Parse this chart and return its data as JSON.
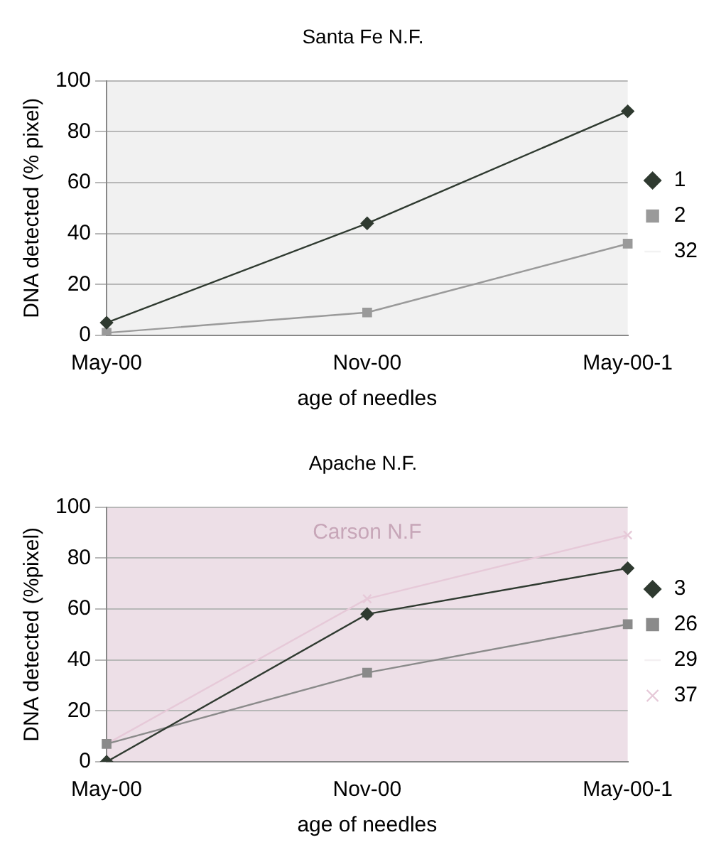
{
  "chart_data": [
    {
      "type": "line",
      "title": "Santa Fe N.F.",
      "xlabel": "age of needles",
      "ylabel": "DNA detected (% pixel)",
      "categories": [
        "May-00",
        "Nov-00",
        "May-00-1"
      ],
      "series": [
        {
          "name": "1",
          "color": "#2f3a30",
          "values": [
            5,
            44,
            88
          ],
          "marker": "diamond"
        },
        {
          "name": "2",
          "color": "#9a9a9a",
          "values": [
            1,
            9,
            36
          ],
          "marker": "square"
        },
        {
          "name": "32",
          "color": "#f2f2f2",
          "values": [
            null,
            null,
            null
          ],
          "marker": "none"
        }
      ],
      "ylim": [
        0,
        100
      ],
      "yticks": [
        0,
        20,
        40,
        60,
        80,
        100
      ],
      "grid": "y",
      "legend": "right"
    },
    {
      "type": "line",
      "title": "Apache N.F.",
      "xlabel": "age of needles",
      "ylabel": "DNA detected (%pixel)",
      "categories": [
        "May-00",
        "Nov-00",
        "May-00-1"
      ],
      "series": [
        {
          "name": "3",
          "color": "#2f3a30",
          "values": [
            0,
            58,
            76
          ],
          "marker": "diamond"
        },
        {
          "name": "26",
          "color": "#8a8a8a",
          "values": [
            7,
            35,
            54
          ],
          "marker": "square"
        },
        {
          "name": "29",
          "color": "#f4f0f2",
          "values": [
            null,
            null,
            null
          ],
          "marker": "none"
        },
        {
          "name": "37",
          "color": "#e6c9d8",
          "values": [
            7,
            64,
            89
          ],
          "marker": "cross"
        }
      ],
      "annotations": [
        "Carson N.F"
      ],
      "ylim": [
        0,
        100
      ],
      "yticks": [
        0,
        20,
        40,
        60,
        80,
        100
      ],
      "grid": "y",
      "legend": "right"
    }
  ]
}
